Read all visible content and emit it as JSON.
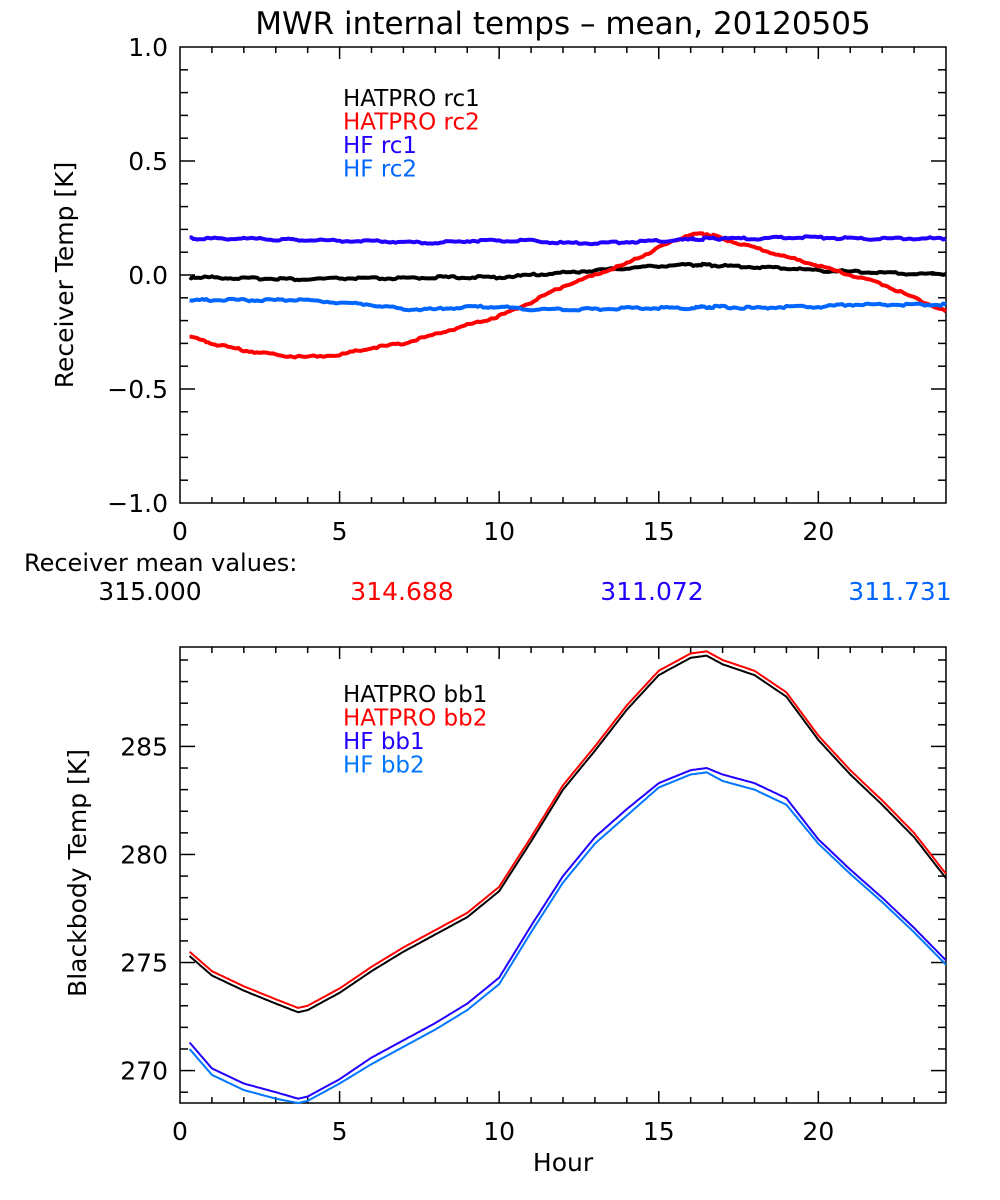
{
  "chart_data": [
    {
      "type": "line",
      "title": "MWR internal temps – mean, 20120505",
      "xlabel": "",
      "ylabel": "Receiver Temp [K]",
      "xlim": [
        0,
        24
      ],
      "ylim": [
        -1.0,
        1.0
      ],
      "xticks": [
        "0",
        "5",
        "10",
        "15",
        "20"
      ],
      "xtick_values": [
        0,
        5,
        10,
        15,
        20
      ],
      "yticks": [
        "1.0",
        "0.5",
        "0.0",
        "−0.5",
        "−1.0"
      ],
      "ytick_values": [
        1.0,
        0.5,
        0.0,
        -0.5,
        -1.0
      ],
      "grid": false,
      "legend": "top-left (inside, near x=5)",
      "x": [
        0.3,
        1,
        2,
        3,
        3.8,
        5,
        6,
        7,
        8,
        9,
        10,
        11,
        12,
        13,
        14,
        15,
        16,
        16.5,
        17,
        18,
        19,
        20,
        21,
        22,
        23,
        24
      ],
      "series": [
        {
          "name": "HATPRO rc1",
          "color": "#000000",
          "values": [
            -0.01,
            -0.01,
            -0.015,
            -0.015,
            -0.02,
            -0.015,
            -0.015,
            -0.015,
            -0.01,
            -0.01,
            -0.01,
            0.0,
            0.01,
            0.02,
            0.03,
            0.04,
            0.045,
            0.045,
            0.04,
            0.035,
            0.03,
            0.02,
            0.015,
            0.01,
            0.005,
            0.005
          ]
        },
        {
          "name": "HATPRO rc2",
          "color": "#ff0000",
          "values": [
            -0.27,
            -0.3,
            -0.33,
            -0.35,
            -0.36,
            -0.35,
            -0.32,
            -0.3,
            -0.26,
            -0.22,
            -0.18,
            -0.12,
            -0.05,
            0.0,
            0.05,
            0.12,
            0.18,
            0.18,
            0.16,
            0.12,
            0.08,
            0.04,
            0.0,
            -0.04,
            -0.1,
            -0.16
          ]
        },
        {
          "name": "HF rc1",
          "color": "#2200ff",
          "values": [
            0.16,
            0.16,
            0.16,
            0.155,
            0.155,
            0.15,
            0.15,
            0.145,
            0.14,
            0.15,
            0.15,
            0.15,
            0.14,
            0.14,
            0.145,
            0.15,
            0.155,
            0.16,
            0.16,
            0.16,
            0.165,
            0.165,
            0.16,
            0.16,
            0.16,
            0.16
          ]
        },
        {
          "name": "HF rc2",
          "color": "#0066ff",
          "values": [
            -0.11,
            -0.11,
            -0.11,
            -0.11,
            -0.11,
            -0.12,
            -0.13,
            -0.15,
            -0.15,
            -0.14,
            -0.14,
            -0.15,
            -0.15,
            -0.15,
            -0.145,
            -0.145,
            -0.145,
            -0.14,
            -0.14,
            -0.145,
            -0.14,
            -0.14,
            -0.13,
            -0.13,
            -0.13,
            -0.13
          ]
        }
      ]
    },
    {
      "type": "line",
      "title": "",
      "xlabel": "Hour",
      "ylabel": "Blackbody Temp [K]",
      "xlim": [
        0,
        24
      ],
      "ylim": [
        268.5,
        289.6
      ],
      "xticks": [
        "0",
        "5",
        "10",
        "15",
        "20"
      ],
      "xtick_values": [
        0,
        5,
        10,
        15,
        20
      ],
      "yticks": [
        "285",
        "280",
        "275",
        "270"
      ],
      "ytick_values": [
        285,
        280,
        275,
        270
      ],
      "grid": false,
      "legend": "top-left (inside, near x=5)",
      "x": [
        0.3,
        1,
        2,
        3,
        3.7,
        4,
        5,
        6,
        7,
        8,
        9,
        10,
        11,
        12,
        13,
        14,
        15,
        16,
        16.5,
        17,
        18,
        19,
        20,
        21,
        22,
        23,
        24
      ],
      "series": [
        {
          "name": "HATPRO bb1",
          "color": "#000000",
          "values": [
            275.3,
            274.4,
            273.7,
            273.1,
            272.7,
            272.8,
            273.6,
            274.6,
            275.5,
            276.3,
            277.1,
            278.3,
            280.6,
            283.0,
            284.8,
            286.7,
            288.3,
            289.1,
            289.2,
            288.8,
            288.3,
            287.3,
            285.3,
            283.7,
            282.3,
            280.8,
            278.9
          ]
        },
        {
          "name": "HATPRO bb2",
          "color": "#ff0000",
          "values": [
            275.5,
            274.6,
            273.9,
            273.3,
            272.9,
            273.0,
            273.8,
            274.8,
            275.7,
            276.5,
            277.3,
            278.5,
            280.8,
            283.2,
            285.0,
            286.9,
            288.5,
            289.3,
            289.4,
            289.0,
            288.5,
            287.5,
            285.5,
            283.9,
            282.5,
            281.0,
            279.1
          ]
        },
        {
          "name": "HF bb1",
          "color": "#2200ff",
          "values": [
            271.3,
            270.1,
            269.4,
            269.0,
            268.7,
            268.8,
            269.6,
            270.6,
            271.4,
            272.2,
            273.1,
            274.3,
            276.7,
            279.0,
            280.8,
            282.1,
            283.3,
            283.9,
            284.0,
            283.7,
            283.3,
            282.6,
            280.7,
            279.3,
            278.0,
            276.6,
            275.1
          ]
        },
        {
          "name": "HF bb2",
          "color": "#0077ff",
          "values": [
            271.0,
            269.8,
            269.1,
            268.7,
            268.5,
            268.6,
            269.4,
            270.3,
            271.1,
            271.9,
            272.8,
            274.0,
            276.4,
            278.7,
            280.5,
            281.8,
            283.1,
            283.7,
            283.8,
            283.4,
            283.0,
            282.3,
            280.5,
            279.1,
            277.8,
            276.4,
            274.9
          ]
        }
      ]
    }
  ],
  "receiver_means": {
    "label": "Receiver mean values:",
    "values": [
      {
        "text": "315.000",
        "color": "#000000"
      },
      {
        "text": "314.688",
        "color": "#ff0000"
      },
      {
        "text": "311.072",
        "color": "#2200ff"
      },
      {
        "text": "311.731",
        "color": "#0066ff"
      }
    ]
  }
}
